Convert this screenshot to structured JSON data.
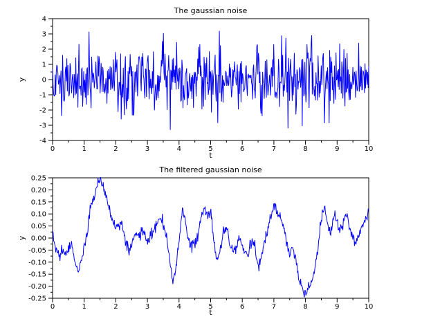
{
  "figure": {
    "background": "#ffffff",
    "axis_color": "#000000",
    "line_color": "#0000ff"
  },
  "chart_data": [
    {
      "type": "line",
      "title": "The gaussian noise",
      "xlabel": "t",
      "ylabel": "y",
      "xlim": [
        0,
        10
      ],
      "ylim": [
        -4,
        4
      ],
      "xticks": [
        0,
        1,
        2,
        3,
        4,
        5,
        6,
        7,
        8,
        9,
        10
      ],
      "xtick_labels": [
        "0",
        "1",
        "2",
        "3",
        "4",
        "5",
        "6",
        "7",
        "8",
        "9",
        "10"
      ],
      "yticks": [
        -4,
        -3,
        -2,
        -1,
        0,
        1,
        2,
        3,
        4
      ],
      "ytick_labels": [
        "-4",
        "-3",
        "-2",
        "-1",
        "0",
        "1",
        "2",
        "3",
        "4"
      ],
      "minor_ticks": true,
      "grid": false,
      "legend": "none",
      "line_color": "#0000ff",
      "series": {
        "name": "gaussian noise",
        "generator": {
          "kind": "gaussian",
          "seed": 1337,
          "n": 600,
          "mean": 0,
          "sd": 1.0,
          "clip": [
            -3.35,
            3.3
          ],
          "spikes": [
            [
              1.15,
              3.15
            ],
            [
              3.5,
              3.05
            ],
            [
              3.72,
              -3.3
            ],
            [
              5.22,
              -2.85
            ],
            [
              7.25,
              2.9
            ],
            [
              7.45,
              -3.2
            ],
            [
              7.9,
              -3.05
            ]
          ]
        }
      }
    },
    {
      "type": "line",
      "title": "The filtered gaussian noise",
      "xlabel": "t",
      "ylabel": "y",
      "xlim": [
        0,
        10
      ],
      "ylim": [
        -0.25,
        0.25
      ],
      "xticks": [
        0,
        1,
        2,
        3,
        4,
        5,
        6,
        7,
        8,
        9,
        10
      ],
      "xtick_labels": [
        "0",
        "1",
        "2",
        "3",
        "4",
        "5",
        "6",
        "7",
        "8",
        "9",
        "10"
      ],
      "yticks": [
        -0.25,
        -0.2,
        -0.15,
        -0.1,
        -0.05,
        0.0,
        0.05,
        0.1,
        0.15,
        0.2,
        0.25
      ],
      "ytick_labels": [
        "-0.25",
        "-0.20",
        "-0.15",
        "-0.10",
        "-0.05",
        "0.00",
        "0.05",
        "0.10",
        "0.15",
        "0.20",
        "0.25"
      ],
      "minor_ticks": true,
      "grid": false,
      "legend": "none",
      "line_color": "#0000ff",
      "series": {
        "name": "filtered gaussian noise",
        "keypoints": {
          "t0": 0,
          "dt": 0.1,
          "y": [
            0.02,
            -0.05,
            -0.07,
            -0.05,
            -0.08,
            -0.04,
            -0.02,
            -0.09,
            -0.145,
            -0.1,
            -0.04,
            0.03,
            0.13,
            0.16,
            0.22,
            0.252,
            0.21,
            0.18,
            0.12,
            0.08,
            0.04,
            0.05,
            0.07,
            -0.01,
            -0.05,
            -0.03,
            0.02,
            0.0,
            0.03,
            0.02,
            -0.01,
            0.01,
            0.03,
            0.06,
            0.08,
            0.05,
            0.01,
            -0.08,
            -0.19,
            -0.12,
            -0.02,
            0.12,
            0.07,
            -0.01,
            -0.04,
            -0.02,
            0.01,
            0.08,
            0.12,
            0.1,
            0.11,
            -0.02,
            -0.09,
            -0.06,
            0.02,
            0.05,
            -0.02,
            -0.06,
            -0.03,
            0.01,
            -0.03,
            -0.07,
            -0.05,
            0.0,
            -0.04,
            -0.12,
            -0.08,
            -0.02,
            0.04,
            0.09,
            0.13,
            0.12,
            0.09,
            0.05,
            -0.02,
            -0.07,
            -0.03,
            -0.09,
            -0.16,
            -0.21,
            -0.235,
            -0.2,
            -0.19,
            -0.12,
            -0.05,
            0.09,
            0.13,
            0.06,
            0.02,
            0.1,
            0.07,
            0.03,
            0.06,
            0.1,
            0.04,
            -0.01,
            -0.025,
            0.02,
            0.04,
            0.08,
            0.11
          ]
        },
        "jitter": {
          "kind": "gaussian",
          "seed": 777,
          "amp": 0.012,
          "n": 600
        }
      }
    }
  ]
}
